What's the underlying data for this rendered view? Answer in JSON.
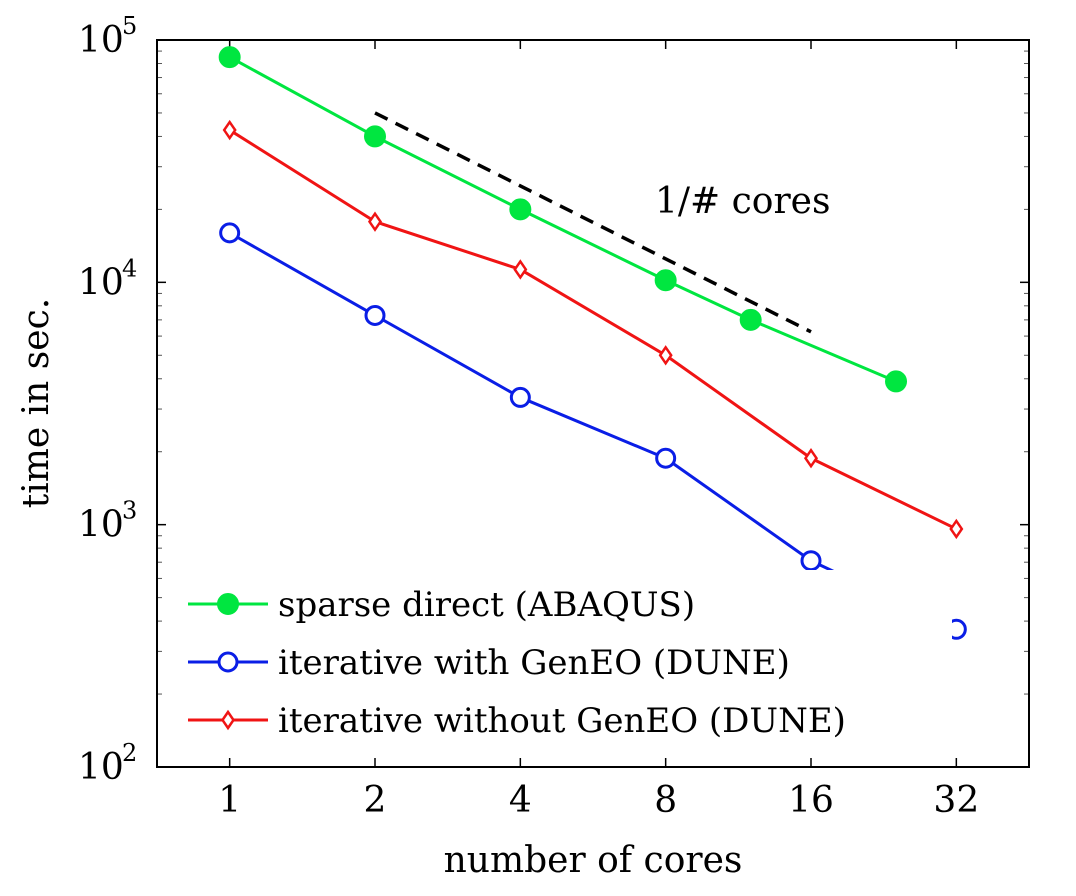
{
  "chart_data": {
    "type": "line",
    "xscale": "log2",
    "yscale": "log10",
    "xlabel": "number of cores",
    "ylabel": "time in sec.",
    "xlim": [
      0.7071,
      45.2548
    ],
    "ylim": [
      100,
      100000
    ],
    "xticks": [
      1,
      2,
      4,
      8,
      16,
      32
    ],
    "xtick_labels": [
      "1",
      "2",
      "4",
      "8",
      "16",
      "32"
    ],
    "yticks": [
      100,
      1000,
      10000,
      100000
    ],
    "ytick_labels": [
      {
        "base": "10",
        "exp": "2"
      },
      {
        "base": "10",
        "exp": "3"
      },
      {
        "base": "10",
        "exp": "4"
      },
      {
        "base": "10",
        "exp": "5"
      }
    ],
    "grid": false,
    "legend_position": "bottom-left",
    "series": [
      {
        "name": "sparse direct (ABAQUS)",
        "color": "#00e640",
        "marker": "filled-circle",
        "x": [
          1,
          2,
          4,
          8,
          12,
          24
        ],
        "y": [
          85000,
          40000,
          20000,
          10200,
          7000,
          3900
        ]
      },
      {
        "name": "iterative with GenEO (DUNE)",
        "color": "#0a1ee6",
        "marker": "open-circle",
        "x": [
          1,
          2,
          4,
          8,
          16,
          32
        ],
        "y": [
          16000,
          7300,
          3350,
          1880,
          710,
          370
        ]
      },
      {
        "name": "iterative without GenEO (DUNE)",
        "color": "#f01414",
        "marker": "open-diamond",
        "x": [
          1,
          2,
          4,
          8,
          16,
          32
        ],
        "y": [
          42500,
          17800,
          11300,
          5000,
          1880,
          960
        ]
      }
    ],
    "reference_line": {
      "label": "1/# cores",
      "style": "dashed",
      "color": "#000000",
      "x": [
        2,
        16
      ],
      "y": [
        50000,
        6250
      ]
    }
  }
}
